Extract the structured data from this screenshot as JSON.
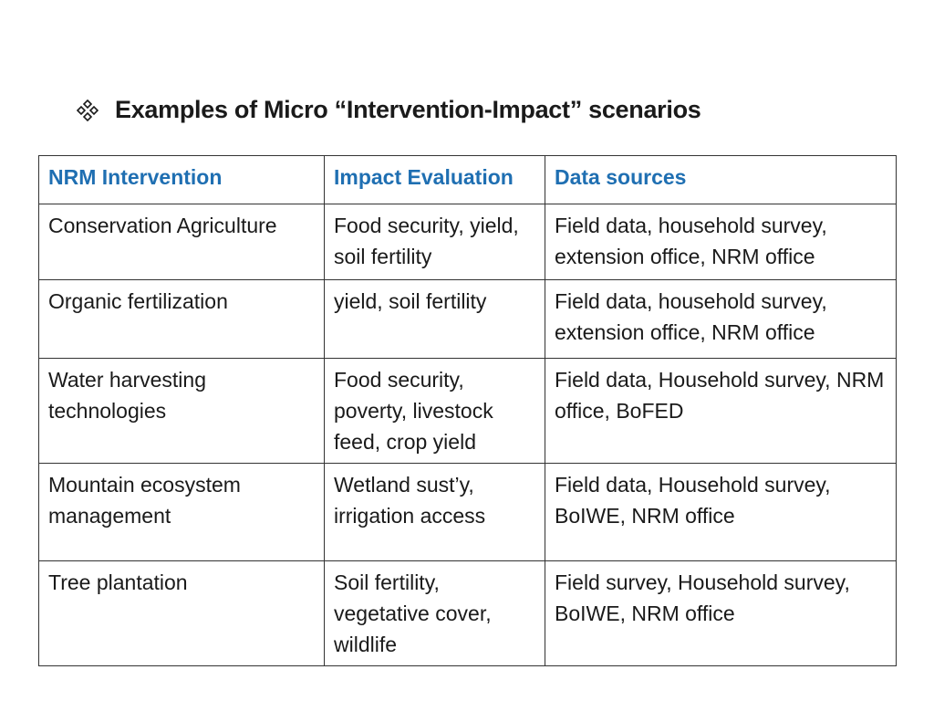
{
  "slide": {
    "title": "Examples of Micro “Intervention-Impact” scenarios",
    "bullet_icon": "four-diamond-bullet-icon"
  },
  "table": {
    "headers": [
      "NRM Intervention",
      "Impact Evaluation",
      "Data sources"
    ],
    "header_color": "#1f6fb2",
    "rows": [
      {
        "intervention": "Conservation Agriculture",
        "impact": "Food security, yield, soil fertility",
        "sources": "Field data, household survey, extension office, NRM office"
      },
      {
        "intervention": "Organic fertilization",
        "impact": "yield, soil fertility",
        "sources": "Field data, household survey, extension office, NRM office"
      },
      {
        "intervention": "Water harvesting technologies",
        "impact": "Food security, poverty, livestock feed, crop yield",
        "sources": "Field data, Household survey, NRM office, BoFED"
      },
      {
        "intervention": "Mountain ecosystem management",
        "impact": "Wetland sust’y, irrigation access",
        "sources": "Field data, Household survey, BoIWE, NRM office"
      },
      {
        "intervention": "Tree plantation",
        "impact": "Soil fertility, vegetative cover, wildlife",
        "sources": "Field survey, Household survey, BoIWE, NRM office"
      }
    ]
  }
}
